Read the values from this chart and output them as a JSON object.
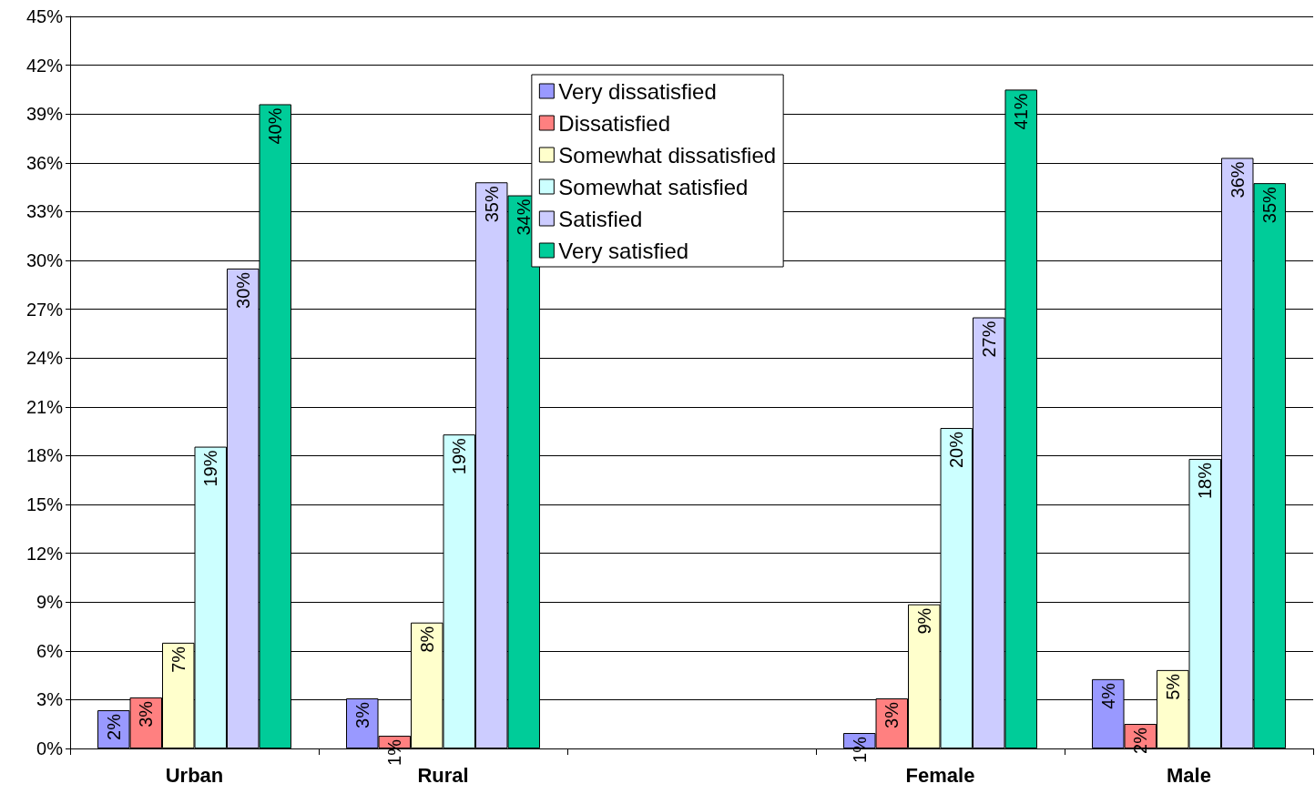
{
  "chart_data": {
    "type": "bar",
    "categories": [
      "Urban",
      "Rural",
      null,
      "Female",
      "Male"
    ],
    "series": [
      {
        "name": "Very dissatisfied",
        "color": "#9999ff",
        "values": [
          2.35,
          3.08,
          null,
          0.95,
          4.26
        ],
        "value_labels": [
          "2%",
          "3%",
          null,
          "1%",
          "4%"
        ]
      },
      {
        "name": "Dissatisfied",
        "color": "#ff8080",
        "values": [
          3.14,
          0.78,
          null,
          3.08,
          1.51
        ],
        "value_labels": [
          "3%",
          "1%",
          null,
          "3%",
          "2%"
        ]
      },
      {
        "name": "Somewhat dissatisfied",
        "color": "#ffffcc",
        "values": [
          6.5,
          7.74,
          null,
          8.86,
          4.82
        ],
        "value_labels": [
          "7%",
          "8%",
          null,
          "9%",
          "5%"
        ]
      },
      {
        "name": "Somewhat satisfied",
        "color": "#ccffff",
        "values": [
          18.55,
          19.3,
          null,
          19.7,
          17.8
        ],
        "value_labels": [
          "19%",
          "19%",
          null,
          "20%",
          "18%"
        ]
      },
      {
        "name": "Satisfied",
        "color": "#ccccff",
        "values": [
          29.5,
          34.8,
          null,
          26.5,
          36.3
        ],
        "value_labels": [
          "30%",
          "35%",
          null,
          "27%",
          "36%"
        ]
      },
      {
        "name": "Very satisfied",
        "color": "#00cc99",
        "values": [
          39.6,
          34.0,
          null,
          40.5,
          34.75
        ],
        "value_labels": [
          "40%",
          "34%",
          null,
          "41%",
          "35%"
        ]
      }
    ],
    "ylim": [
      0,
      45
    ],
    "yticks": [
      {
        "value": 0,
        "label": "0%"
      },
      {
        "value": 3,
        "label": "3%"
      },
      {
        "value": 6,
        "label": "6%"
      },
      {
        "value": 9,
        "label": "9%"
      },
      {
        "value": 12,
        "label": "12%"
      },
      {
        "value": 15,
        "label": "15%"
      },
      {
        "value": 18,
        "label": "18%"
      },
      {
        "value": 21,
        "label": "21%"
      },
      {
        "value": 24,
        "label": "24%"
      },
      {
        "value": 27,
        "label": "27%"
      },
      {
        "value": 30,
        "label": "30%"
      },
      {
        "value": 33,
        "label": "33%"
      },
      {
        "value": 36,
        "label": "36%"
      },
      {
        "value": 39,
        "label": "39%"
      },
      {
        "value": 42,
        "label": "42%"
      },
      {
        "value": 45,
        "label": "45%"
      }
    ],
    "grid": "y",
    "legend": "top"
  }
}
